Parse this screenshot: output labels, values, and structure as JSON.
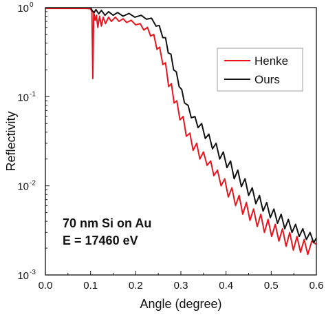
{
  "chart_data": {
    "type": "line",
    "xlabel": "Angle (degree)",
    "ylabel": "Reflectivity",
    "xlim": [
      0.0,
      0.6
    ],
    "ylim": [
      0.001,
      1.0
    ],
    "yscale": "log",
    "grid": false,
    "legend_position": "top-right",
    "x_ticks": [
      0.0,
      0.1,
      0.2,
      0.3,
      0.4,
      0.5,
      0.6
    ],
    "x_tick_labels": [
      "0.0",
      "0.1",
      "0.2",
      "0.3",
      "0.4",
      "0.5",
      "0.6"
    ],
    "y_ticks": [
      0.001,
      0.01,
      0.1,
      1.0
    ],
    "y_tick_labels": [
      {
        "base": "10",
        "exp": "-3"
      },
      {
        "base": "10",
        "exp": "-2"
      },
      {
        "base": "10",
        "exp": "-1"
      },
      {
        "base": "10",
        "exp": "0"
      }
    ],
    "annotation": [
      "70 nm Si on Au",
      "E = 17460 eV"
    ],
    "series": [
      {
        "name": "Henke",
        "color": "#e8141c",
        "points": [
          [
            0.0,
            0.98
          ],
          [
            0.09,
            0.98
          ],
          [
            0.1,
            0.97
          ],
          [
            0.103,
            0.9
          ],
          [
            0.105,
            0.16
          ],
          [
            0.107,
            0.9
          ],
          [
            0.11,
            0.72
          ],
          [
            0.113,
            0.82
          ],
          [
            0.116,
            0.6
          ],
          [
            0.12,
            0.8
          ],
          [
            0.124,
            0.62
          ],
          [
            0.128,
            0.78
          ],
          [
            0.133,
            0.66
          ],
          [
            0.14,
            0.78
          ],
          [
            0.146,
            0.7
          ],
          [
            0.155,
            0.78
          ],
          [
            0.163,
            0.7
          ],
          [
            0.172,
            0.75
          ],
          [
            0.18,
            0.68
          ],
          [
            0.19,
            0.72
          ],
          [
            0.2,
            0.64
          ],
          [
            0.21,
            0.66
          ],
          [
            0.218,
            0.56
          ],
          [
            0.226,
            0.6
          ],
          [
            0.233,
            0.48
          ],
          [
            0.24,
            0.5
          ],
          [
            0.247,
            0.34
          ],
          [
            0.253,
            0.36
          ],
          [
            0.26,
            0.23
          ],
          [
            0.266,
            0.24
          ],
          [
            0.273,
            0.13
          ],
          [
            0.279,
            0.14
          ],
          [
            0.285,
            0.085
          ],
          [
            0.291,
            0.09
          ],
          [
            0.298,
            0.055
          ],
          [
            0.305,
            0.06
          ],
          [
            0.312,
            0.036
          ],
          [
            0.32,
            0.039
          ],
          [
            0.327,
            0.025
          ],
          [
            0.335,
            0.03
          ],
          [
            0.342,
            0.02
          ],
          [
            0.35,
            0.024
          ],
          [
            0.358,
            0.017
          ],
          [
            0.366,
            0.019
          ],
          [
            0.373,
            0.013
          ],
          [
            0.381,
            0.015
          ],
          [
            0.389,
            0.01
          ],
          [
            0.397,
            0.012
          ],
          [
            0.405,
            0.0075
          ],
          [
            0.413,
            0.0095
          ],
          [
            0.421,
            0.006
          ],
          [
            0.429,
            0.0078
          ],
          [
            0.437,
            0.0048
          ],
          [
            0.445,
            0.0065
          ],
          [
            0.453,
            0.0041
          ],
          [
            0.461,
            0.0055
          ],
          [
            0.469,
            0.0035
          ],
          [
            0.477,
            0.0048
          ],
          [
            0.485,
            0.003
          ],
          [
            0.493,
            0.0042
          ],
          [
            0.501,
            0.0027
          ],
          [
            0.509,
            0.0037
          ],
          [
            0.517,
            0.0024
          ],
          [
            0.525,
            0.0033
          ],
          [
            0.533,
            0.0021
          ],
          [
            0.541,
            0.003
          ],
          [
            0.549,
            0.0019
          ],
          [
            0.557,
            0.0027
          ],
          [
            0.565,
            0.0018
          ],
          [
            0.573,
            0.0025
          ],
          [
            0.581,
            0.0017
          ],
          [
            0.59,
            0.0024
          ],
          [
            0.6,
            0.0022
          ]
        ]
      },
      {
        "name": "Ours",
        "color": "#111111",
        "points": [
          [
            0.0,
            1.0
          ],
          [
            0.1,
            1.0
          ],
          [
            0.104,
            0.92
          ],
          [
            0.108,
            0.88
          ],
          [
            0.112,
            0.95
          ],
          [
            0.118,
            0.85
          ],
          [
            0.124,
            0.93
          ],
          [
            0.132,
            0.82
          ],
          [
            0.14,
            0.9
          ],
          [
            0.15,
            0.82
          ],
          [
            0.16,
            0.88
          ],
          [
            0.172,
            0.8
          ],
          [
            0.185,
            0.86
          ],
          [
            0.198,
            0.78
          ],
          [
            0.212,
            0.82
          ],
          [
            0.224,
            0.74
          ],
          [
            0.235,
            0.76
          ],
          [
            0.245,
            0.62
          ],
          [
            0.252,
            0.63
          ],
          [
            0.26,
            0.46
          ],
          [
            0.266,
            0.46
          ],
          [
            0.272,
            0.31
          ],
          [
            0.278,
            0.3
          ],
          [
            0.284,
            0.2
          ],
          [
            0.29,
            0.19
          ],
          [
            0.296,
            0.13
          ],
          [
            0.302,
            0.12
          ],
          [
            0.308,
            0.085
          ],
          [
            0.316,
            0.08
          ],
          [
            0.323,
            0.058
          ],
          [
            0.331,
            0.06
          ],
          [
            0.338,
            0.045
          ],
          [
            0.346,
            0.05
          ],
          [
            0.354,
            0.034
          ],
          [
            0.362,
            0.038
          ],
          [
            0.37,
            0.026
          ],
          [
            0.378,
            0.03
          ],
          [
            0.386,
            0.02
          ],
          [
            0.394,
            0.024
          ],
          [
            0.402,
            0.016
          ],
          [
            0.41,
            0.019
          ],
          [
            0.418,
            0.012
          ],
          [
            0.426,
            0.015
          ],
          [
            0.434,
            0.0098
          ],
          [
            0.442,
            0.012
          ],
          [
            0.45,
            0.0078
          ],
          [
            0.458,
            0.0095
          ],
          [
            0.466,
            0.0063
          ],
          [
            0.474,
            0.0078
          ],
          [
            0.482,
            0.0052
          ],
          [
            0.49,
            0.0065
          ],
          [
            0.498,
            0.0044
          ],
          [
            0.506,
            0.0055
          ],
          [
            0.514,
            0.0038
          ],
          [
            0.522,
            0.0048
          ],
          [
            0.53,
            0.0033
          ],
          [
            0.538,
            0.0042
          ],
          [
            0.546,
            0.003
          ],
          [
            0.554,
            0.0037
          ],
          [
            0.562,
            0.0027
          ],
          [
            0.57,
            0.0033
          ],
          [
            0.578,
            0.0025
          ],
          [
            0.586,
            0.003
          ],
          [
            0.594,
            0.0023
          ],
          [
            0.6,
            0.0026
          ]
        ]
      }
    ]
  }
}
